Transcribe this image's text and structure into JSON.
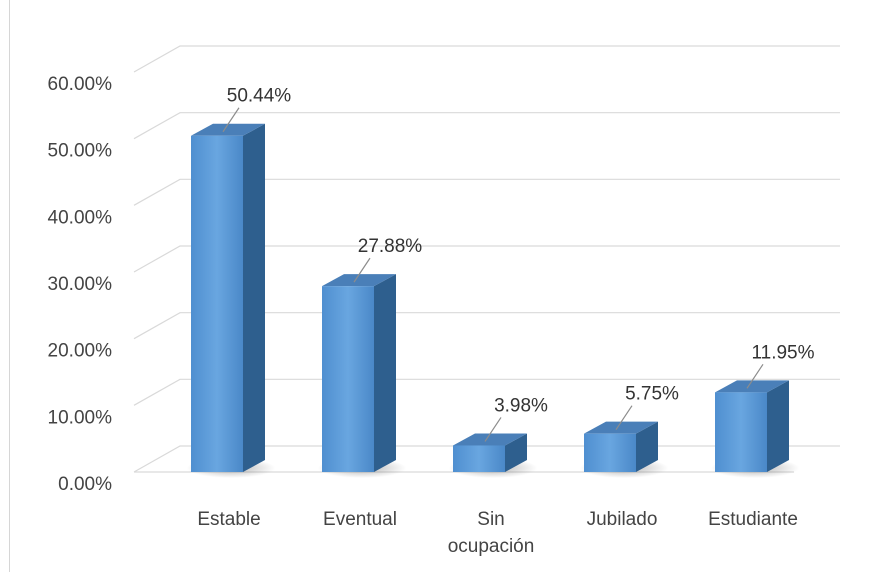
{
  "chart_data": {
    "type": "bar",
    "categories": [
      [
        "Estable"
      ],
      [
        "Eventual"
      ],
      [
        "Sin",
        "ocupación"
      ],
      [
        "Jubilado"
      ],
      [
        "Estudiante"
      ]
    ],
    "values": [
      50.44,
      27.88,
      3.98,
      5.75,
      11.95
    ],
    "data_labels": [
      "50.44%",
      "27.88%",
      "3.98%",
      "5.75%",
      "11.95%"
    ],
    "ylim": [
      0,
      60
    ],
    "yticks": [
      "0.00%",
      "10.00%",
      "20.00%",
      "30.00%",
      "40.00%",
      "50.00%",
      "60.00%"
    ],
    "grid": true,
    "style": "3d",
    "colors": {
      "bar_front": "#5b9bd5",
      "bar_side": "#2e5f8e",
      "bar_top": "#4a7fb8",
      "grid": "#d9d9d9",
      "text": "#444444"
    }
  }
}
